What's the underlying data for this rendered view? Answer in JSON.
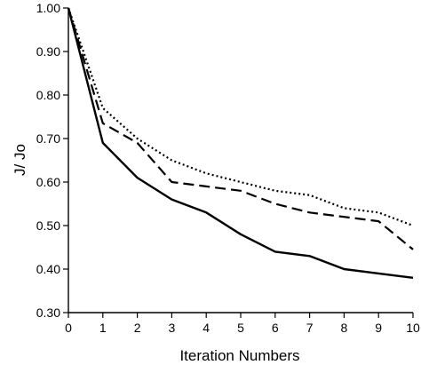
{
  "chart_data": {
    "type": "line",
    "title": "",
    "xlabel": "Iteration Numbers",
    "ylabel": "J/ Jo",
    "x": [
      0,
      1,
      2,
      3,
      4,
      5,
      6,
      7,
      8,
      9,
      10
    ],
    "xlim": [
      0,
      10
    ],
    "ylim": [
      0.3,
      1.0
    ],
    "xticks": [
      0,
      1,
      2,
      3,
      4,
      5,
      6,
      7,
      8,
      9,
      10
    ],
    "xtick_labels": [
      "0",
      "1",
      "2",
      "3",
      "4",
      "5",
      "6",
      "7",
      "8",
      "9",
      "10"
    ],
    "yticks": [
      0.3,
      0.4,
      0.5,
      0.6,
      0.7,
      0.8,
      0.9,
      1.0
    ],
    "ytick_labels": [
      "0.30",
      "0.40",
      "0.50",
      "0.60",
      "0.70",
      "0.80",
      "0.90",
      "1.00"
    ],
    "grid": false,
    "legend": "none",
    "series": [
      {
        "style": "solid",
        "values": [
          1.0,
          0.69,
          0.61,
          0.56,
          0.53,
          0.48,
          0.44,
          0.43,
          0.4,
          0.39,
          0.38
        ]
      },
      {
        "style": "dashed",
        "values": [
          1.0,
          0.735,
          0.69,
          0.6,
          0.59,
          0.58,
          0.55,
          0.53,
          0.52,
          0.51,
          0.445
        ]
      },
      {
        "style": "dotted",
        "values": [
          1.0,
          0.77,
          0.7,
          0.65,
          0.62,
          0.6,
          0.58,
          0.57,
          0.54,
          0.53,
          0.5
        ]
      }
    ]
  }
}
